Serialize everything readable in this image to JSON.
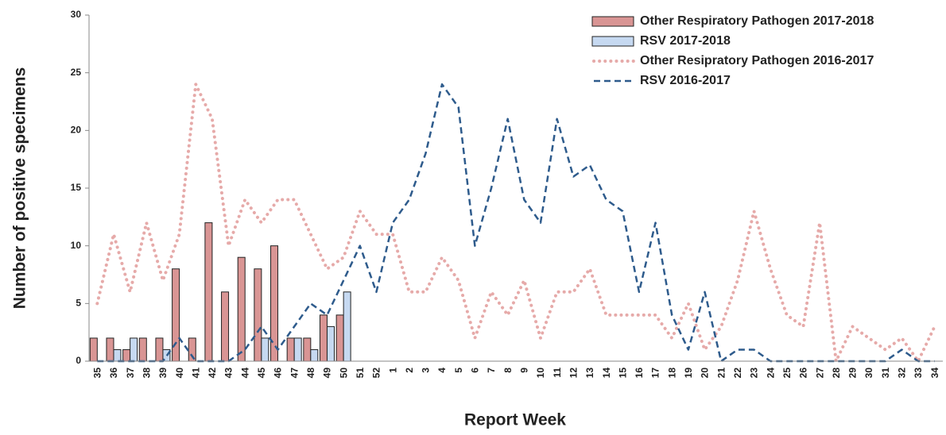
{
  "chart_data": {
    "type": "bar-line",
    "x_label": "Report Week",
    "y_label": "Number of positive specimens",
    "categories": [
      "35",
      "36",
      "37",
      "38",
      "39",
      "40",
      "41",
      "42",
      "43",
      "44",
      "45",
      "46",
      "47",
      "48",
      "49",
      "50",
      "51",
      "52",
      "1",
      "2",
      "3",
      "4",
      "5",
      "6",
      "7",
      "8",
      "9",
      "10",
      "11",
      "12",
      "13",
      "14",
      "15",
      "16",
      "17",
      "18",
      "19",
      "20",
      "21",
      "22",
      "23",
      "24",
      "25",
      "26",
      "27",
      "28",
      "29",
      "30",
      "31",
      "32",
      "33",
      "34"
    ],
    "series": [
      {
        "name": "Other Respiratory Pathogen 2017-2018",
        "kind": "bar",
        "color": "#d99594",
        "values": [
          2,
          2,
          1,
          2,
          2,
          8,
          2,
          12,
          6,
          9,
          8,
          10,
          2,
          2,
          4,
          4,
          null,
          null,
          null,
          null,
          null,
          null,
          null,
          null,
          null,
          null,
          null,
          null,
          null,
          null,
          null,
          null,
          null,
          null,
          null,
          null,
          null,
          null,
          null,
          null,
          null,
          null,
          null,
          null,
          null,
          null,
          null,
          null,
          null,
          null,
          null,
          null
        ]
      },
      {
        "name": "RSV 2017-2018",
        "kind": "bar",
        "color": "#c6d9f1",
        "values": [
          0,
          1,
          2,
          0,
          1,
          0,
          0,
          0,
          0,
          0,
          2,
          0,
          2,
          1,
          3,
          6,
          null,
          null,
          null,
          null,
          null,
          null,
          null,
          null,
          null,
          null,
          null,
          null,
          null,
          null,
          null,
          null,
          null,
          null,
          null,
          null,
          null,
          null,
          null,
          null,
          null,
          null,
          null,
          null,
          null,
          null,
          null,
          null,
          null,
          null,
          null,
          null
        ]
      },
      {
        "name": "Other Resipratory Pathogen 2016-2017",
        "kind": "dotted-line",
        "color": "#e6aaa9",
        "values": [
          5,
          11,
          6,
          12,
          7,
          11,
          24,
          21,
          10,
          14,
          12,
          14,
          14,
          11,
          8,
          9,
          13,
          11,
          11,
          6,
          6,
          9,
          7,
          2,
          6,
          4,
          7,
          2,
          6,
          6,
          8,
          4,
          4,
          4,
          4,
          2,
          5,
          1,
          3,
          7,
          13,
          8,
          4,
          3,
          12,
          0,
          3,
          2,
          1,
          2,
          0,
          3
        ]
      },
      {
        "name": "RSV 2016-2017",
        "kind": "dashed-line",
        "color": "#2e5b8c",
        "values": [
          0,
          0,
          0,
          0,
          0,
          2,
          0,
          0,
          0,
          1,
          3,
          1,
          3,
          5,
          4,
          7,
          10,
          6,
          12,
          14,
          18,
          24,
          22,
          10,
          15,
          21,
          14,
          12,
          21,
          16,
          17,
          14,
          13,
          6,
          12,
          4,
          1,
          6,
          0,
          1,
          1,
          0,
          0,
          0,
          0,
          0,
          0,
          0,
          0,
          1,
          0,
          0
        ]
      }
    ],
    "ylim": [
      0,
      30
    ],
    "yticks": [
      0,
      5,
      10,
      15,
      20,
      25,
      30
    ],
    "legend": "top-right",
    "grid": false
  }
}
